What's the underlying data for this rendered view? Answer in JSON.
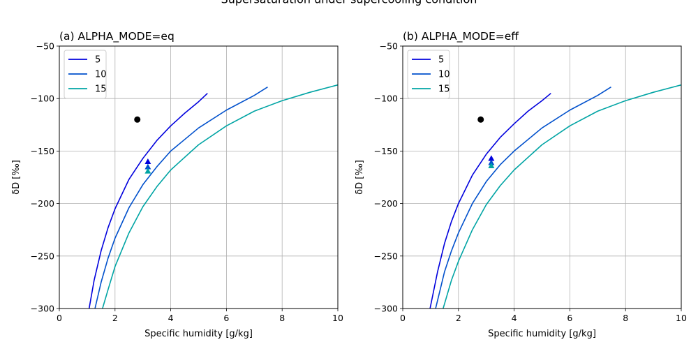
{
  "figure": {
    "suptitle": "Supersaturation under supercooling condition"
  },
  "chart_data": [
    {
      "type": "line",
      "title": "(a) ALPHA_MODE=eq",
      "xlabel": "Specific humidity [g/kg]",
      "ylabel": "δD [‰]",
      "xlim": [
        0,
        10
      ],
      "ylim": [
        -300,
        -50
      ],
      "xticks": [
        0,
        2,
        4,
        6,
        8,
        10
      ],
      "yticks": [
        -300,
        -250,
        -200,
        -150,
        -100,
        -50
      ],
      "grid": true,
      "legend": "top-left",
      "series": [
        {
          "name": "5",
          "color": "#0000dd",
          "x": [
            1.07,
            1.25,
            1.5,
            1.75,
            2.0,
            2.5,
            3.0,
            3.5,
            4.0,
            4.5,
            5.0,
            5.32
          ],
          "y": [
            -300,
            -273,
            -245,
            -223,
            -205,
            -177,
            -157,
            -140,
            -126,
            -114,
            -103,
            -95
          ]
        },
        {
          "name": "10",
          "color": "#0050cc",
          "x": [
            1.28,
            1.5,
            1.75,
            2.0,
            2.5,
            3.0,
            3.5,
            4.0,
            5.0,
            6.0,
            7.0,
            7.48
          ],
          "y": [
            -300,
            -275,
            -252,
            -233,
            -204,
            -182,
            -165,
            -150,
            -128,
            -111,
            -97,
            -89
          ]
        },
        {
          "name": "15",
          "color": "#00a4a4",
          "x": [
            1.55,
            1.75,
            2.0,
            2.5,
            3.0,
            3.5,
            4.0,
            5.0,
            6.0,
            7.0,
            8.0,
            9.0,
            10.0
          ],
          "y": [
            -300,
            -282,
            -260,
            -228,
            -203,
            -184,
            -168,
            -144,
            -126,
            -112,
            -102,
            -94,
            -87
          ]
        }
      ],
      "markers": [
        {
          "shape": "circle",
          "color": "#000000",
          "x": 2.8,
          "y": -120
        },
        {
          "shape": "triangle",
          "color": "#0000dd",
          "x": 3.18,
          "y": -160
        },
        {
          "shape": "triangle",
          "color": "#0050cc",
          "x": 3.18,
          "y": -165
        },
        {
          "shape": "triangle",
          "color": "#00a4a4",
          "x": 3.18,
          "y": -169
        }
      ]
    },
    {
      "type": "line",
      "title": "(b) ALPHA_MODE=eff",
      "xlabel": "Specific humidity [g/kg]",
      "ylabel": "δD [‰]",
      "xlim": [
        0,
        10
      ],
      "ylim": [
        -300,
        -50
      ],
      "xticks": [
        0,
        2,
        4,
        6,
        8,
        10
      ],
      "yticks": [
        -300,
        -250,
        -200,
        -150,
        -100,
        -50
      ],
      "grid": true,
      "legend": "top-left",
      "series": [
        {
          "name": "5",
          "color": "#0000dd",
          "x": [
            0.98,
            1.25,
            1.5,
            1.75,
            2.0,
            2.5,
            3.0,
            3.5,
            4.0,
            4.5,
            5.0,
            5.32
          ],
          "y": [
            -300,
            -265,
            -238,
            -217,
            -200,
            -173,
            -153,
            -137,
            -124,
            -112,
            -102,
            -95
          ]
        },
        {
          "name": "10",
          "color": "#0050cc",
          "x": [
            1.18,
            1.5,
            1.75,
            2.0,
            2.5,
            3.0,
            3.5,
            4.0,
            5.0,
            6.0,
            7.0,
            7.48
          ],
          "y": [
            -300,
            -265,
            -245,
            -228,
            -200,
            -179,
            -163,
            -150,
            -128,
            -111,
            -97,
            -89
          ]
        },
        {
          "name": "15",
          "color": "#00a4a4",
          "x": [
            1.45,
            1.75,
            2.0,
            2.5,
            3.0,
            3.5,
            4.0,
            5.0,
            6.0,
            7.0,
            8.0,
            9.0,
            10.0
          ],
          "y": [
            -300,
            -273,
            -255,
            -225,
            -201,
            -183,
            -168,
            -144,
            -126,
            -112,
            -102,
            -94,
            -87
          ]
        }
      ],
      "markers": [
        {
          "shape": "circle",
          "color": "#000000",
          "x": 2.8,
          "y": -120
        },
        {
          "shape": "triangle",
          "color": "#0000dd",
          "x": 3.18,
          "y": -157
        },
        {
          "shape": "triangle",
          "color": "#0050cc",
          "x": 3.18,
          "y": -161
        },
        {
          "shape": "triangle",
          "color": "#00a4a4",
          "x": 3.18,
          "y": -164
        }
      ]
    }
  ]
}
